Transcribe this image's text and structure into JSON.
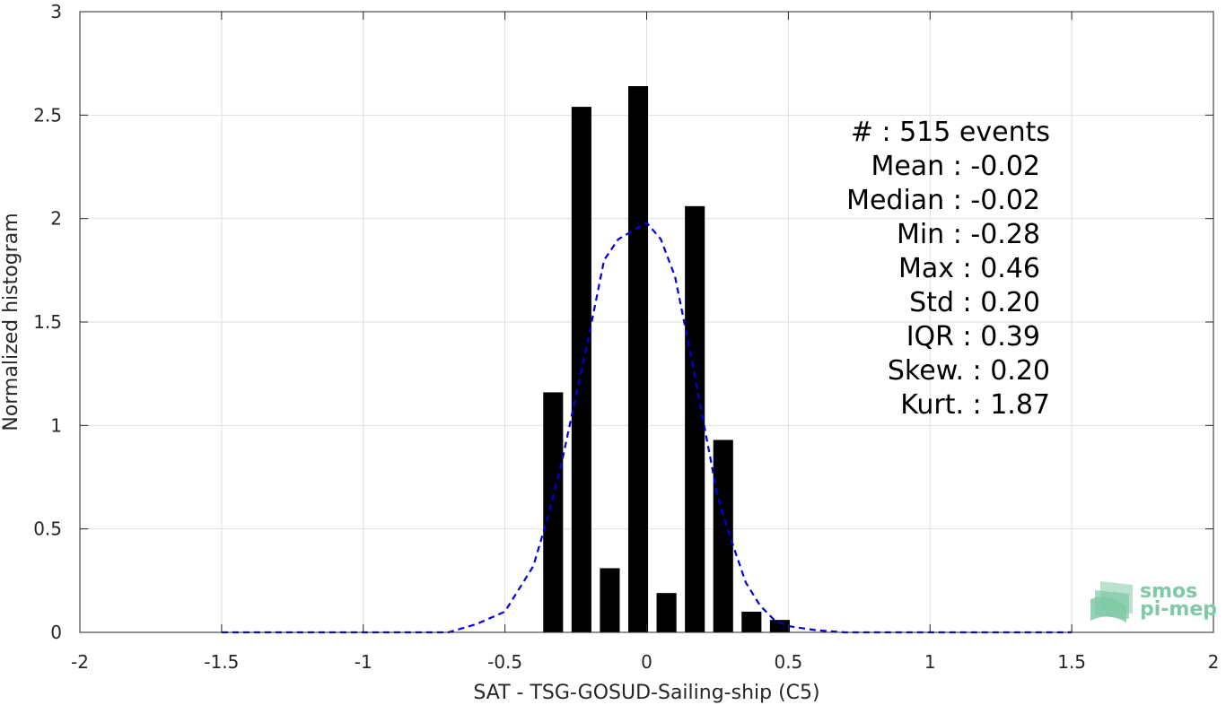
{
  "chart_data": {
    "type": "bar",
    "xlabel": "SAT - TSG-GOSUD-Sailing-ship (C5)",
    "ylabel": "Normalized histogram",
    "xlim": [
      -2,
      2
    ],
    "ylim": [
      0,
      3
    ],
    "xticks": [
      -2,
      -1.5,
      -1,
      -0.5,
      0,
      0.5,
      1,
      1.5,
      2
    ],
    "xtick_labels": [
      "-2",
      "-1.5",
      "-1",
      "-0.5",
      "0",
      "0.5",
      "1",
      "1.5",
      "2"
    ],
    "yticks": [
      0,
      0.5,
      1,
      1.5,
      2,
      2.5,
      3
    ],
    "ytick_labels": [
      "0",
      "0.5",
      "1",
      "1.5",
      "2",
      "2.5",
      "3"
    ],
    "grid": true,
    "bar_width": 0.07,
    "bars": {
      "x": [
        -0.33,
        -0.23,
        -0.13,
        -0.03,
        0.07,
        0.17,
        0.27,
        0.37,
        0.47
      ],
      "values": [
        1.16,
        2.54,
        0.31,
        2.64,
        0.19,
        2.06,
        0.93,
        0.1,
        0.06
      ],
      "color": "#000000"
    },
    "fit_curve": {
      "style": "dashed",
      "color": "#0000e6",
      "x": [
        -1.5,
        -0.7,
        -0.6,
        -0.5,
        -0.4,
        -0.35,
        -0.3,
        -0.25,
        -0.2,
        -0.15,
        -0.1,
        -0.05,
        0.0,
        0.05,
        0.1,
        0.15,
        0.2,
        0.25,
        0.3,
        0.35,
        0.4,
        0.45,
        0.5,
        0.6,
        0.7,
        1.5
      ],
      "y": [
        0.0,
        0.0,
        0.04,
        0.1,
        0.32,
        0.55,
        0.82,
        1.14,
        1.46,
        1.8,
        1.9,
        1.94,
        1.98,
        1.9,
        1.72,
        1.38,
        1.02,
        0.66,
        0.44,
        0.24,
        0.13,
        0.06,
        0.03,
        0.01,
        0.0,
        0.0
      ]
    },
    "stats_lines": [
      "#  : 515 events",
      "Mean : -0.02",
      "Median : -0.02",
      "Min : -0.28",
      "Max : 0.46",
      "Std : 0.20",
      "IQR : 0.39",
      "Skew. : 0.20",
      "Kurt. : 1.87"
    ]
  },
  "logo": {
    "line1": "smos",
    "line2": "pi-mep",
    "color": "#7fc9a6"
  }
}
